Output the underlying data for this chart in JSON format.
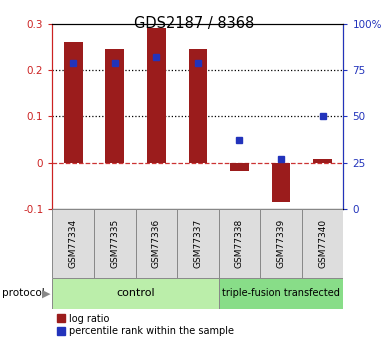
{
  "title": "GDS2187 / 8368",
  "samples": [
    "GSM77334",
    "GSM77335",
    "GSM77336",
    "GSM77337",
    "GSM77338",
    "GSM77339",
    "GSM77340"
  ],
  "log_ratio": [
    0.261,
    0.247,
    0.292,
    0.247,
    -0.018,
    -0.085,
    0.008
  ],
  "percentile_rank_pct": [
    79,
    79,
    82,
    79,
    37,
    27,
    50
  ],
  "ylim_left": [
    -0.1,
    0.3
  ],
  "ylim_right": [
    0,
    100
  ],
  "bar_color": "#9B1C1C",
  "dot_color": "#2233BB",
  "hline_y": [
    0.1,
    0.2
  ],
  "hline_zero_color": "#CC3333",
  "hline_color": "black",
  "control_samples": 4,
  "group_labels": [
    "control",
    "triple-fusion transfected"
  ],
  "control_color": "#BBEEAA",
  "tfx_color": "#88DD88",
  "left_axis_color": "#CC2222",
  "right_axis_color": "#2233BB",
  "protocol_label": "protocol",
  "legend_logratio": "log ratio",
  "legend_percentile": "percentile rank within the sample",
  "sample_bg_color": "#DDDDDD",
  "left_ticks": [
    -0.1,
    0,
    0.1,
    0.2,
    0.3
  ],
  "right_ticks": [
    0,
    25,
    50,
    75,
    100
  ],
  "right_tick_labels": [
    "0",
    "25",
    "50",
    "75",
    "100%"
  ]
}
